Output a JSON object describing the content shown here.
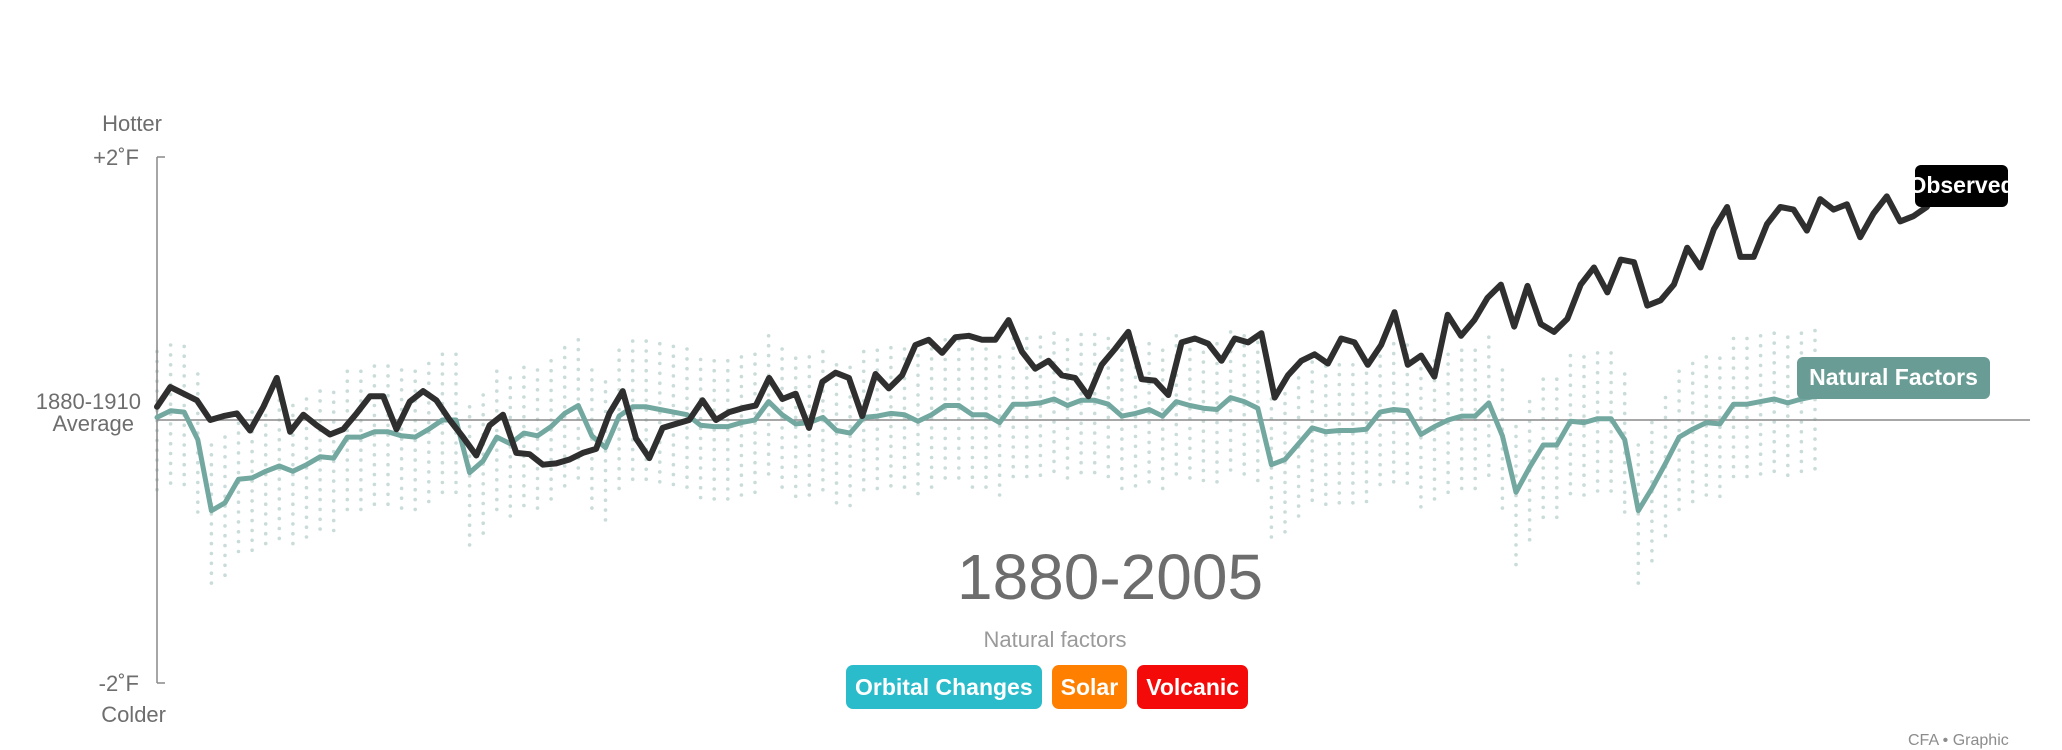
{
  "chart_data": {
    "type": "line",
    "ylabel_top": "Hotter",
    "ylabel_bottom": "Colder",
    "y_ticks": [
      {
        "value": 2,
        "label": "+2˚F"
      },
      {
        "value": 0,
        "label_line1": "1880-1910",
        "label_line2": "Average"
      },
      {
        "value": -2,
        "label": "-2˚F"
      }
    ],
    "ylim": [
      -2,
      2
    ],
    "xlim": [
      1880,
      2005
    ],
    "period_label": "1880-2005",
    "series": [
      {
        "name": "Observed",
        "color": "#2f2f2f",
        "values": [
          0.1,
          0.25,
          0.2,
          0.15,
          0.0,
          0.03,
          0.05,
          -0.08,
          0.1,
          0.32,
          -0.09,
          0.04,
          -0.04,
          -0.11,
          -0.07,
          0.05,
          0.18,
          0.18,
          -0.07,
          0.14,
          0.22,
          0.15,
          0.0,
          -0.13,
          -0.27,
          -0.04,
          0.04,
          -0.25,
          -0.26,
          -0.34,
          -0.33,
          -0.3,
          -0.25,
          -0.22,
          0.05,
          0.22,
          -0.14,
          -0.29,
          -0.06,
          -0.03,
          0.0,
          0.15,
          0.0,
          0.06,
          0.09,
          0.11,
          0.32,
          0.16,
          0.2,
          -0.06,
          0.29,
          0.36,
          0.32,
          0.03,
          0.35,
          0.24,
          0.34,
          0.57,
          0.61,
          0.51,
          0.63,
          0.64,
          0.61,
          0.61,
          0.76,
          0.52,
          0.39,
          0.45,
          0.34,
          0.32,
          0.18,
          0.42,
          0.54,
          0.67,
          0.31,
          0.3,
          0.19,
          0.59,
          0.62,
          0.58,
          0.45,
          0.62,
          0.59,
          0.66,
          0.17,
          0.34,
          0.45,
          0.5,
          0.43,
          0.62,
          0.59,
          0.42,
          0.57,
          0.82,
          0.42,
          0.49,
          0.33,
          0.8,
          0.64,
          0.76,
          0.93,
          1.03,
          0.71,
          1.02,
          0.73,
          0.67,
          0.77,
          1.03,
          1.16,
          0.97,
          1.22,
          1.2,
          0.87,
          0.91,
          1.03,
          1.31,
          1.16,
          1.45,
          1.62,
          1.24,
          1.24,
          1.49,
          1.62,
          1.6,
          1.44,
          1.68,
          1.6,
          1.64,
          1.39,
          1.57,
          1.7,
          1.51,
          1.55,
          1.62,
          1.78
        ]
      },
      {
        "name": "Natural Factors",
        "color": "#72a8a0",
        "values": [
          0.02,
          0.07,
          0.06,
          -0.15,
          -0.69,
          -0.63,
          -0.45,
          -0.44,
          -0.39,
          -0.35,
          -0.39,
          -0.34,
          -0.28,
          -0.29,
          -0.13,
          -0.13,
          -0.09,
          -0.09,
          -0.12,
          -0.13,
          -0.07,
          0.0,
          0.0,
          -0.4,
          -0.31,
          -0.13,
          -0.18,
          -0.1,
          -0.12,
          -0.05,
          0.05,
          0.11,
          -0.12,
          -0.21,
          0.03,
          0.1,
          0.1,
          0.08,
          0.06,
          0.04,
          -0.04,
          -0.05,
          -0.05,
          -0.02,
          0.0,
          0.14,
          0.04,
          -0.03,
          -0.02,
          0.02,
          -0.08,
          -0.1,
          0.02,
          0.03,
          0.05,
          0.04,
          -0.01,
          0.04,
          0.11,
          0.11,
          0.04,
          0.04,
          -0.02,
          0.12,
          0.12,
          0.13,
          0.16,
          0.11,
          0.15,
          0.15,
          0.12,
          0.03,
          0.05,
          0.08,
          0.03,
          0.14,
          0.11,
          0.09,
          0.08,
          0.17,
          0.14,
          0.09,
          -0.34,
          -0.3,
          -0.18,
          -0.06,
          -0.09,
          -0.08,
          -0.08,
          -0.07,
          0.06,
          0.08,
          0.07,
          -0.11,
          -0.05,
          0.0,
          0.03,
          0.03,
          0.13,
          -0.12,
          -0.55,
          -0.36,
          -0.19,
          -0.19,
          -0.01,
          -0.02,
          0.01,
          0.01,
          -0.15,
          -0.69,
          -0.52,
          -0.33,
          -0.13,
          -0.07,
          -0.02,
          -0.03,
          0.12,
          0.12,
          0.14,
          0.16,
          0.13,
          0.16,
          0.18
        ]
      }
    ],
    "label_observed": "Observed",
    "label_natural": "Natural Factors"
  },
  "subtitle": "Natural factors",
  "buttons": [
    {
      "label": "Orbital Changes",
      "color": "#2bbccb"
    },
    {
      "label": "Solar",
      "color": "#ff7f00"
    },
    {
      "label": "Volcanic",
      "color": "#f50a0a"
    }
  ],
  "credit": "CFA • Graphic"
}
